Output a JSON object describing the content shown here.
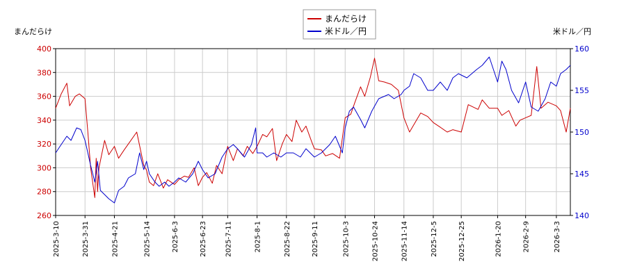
{
  "chart_data": {
    "type": "line",
    "left_axis_label": "まんだらけ",
    "right_axis_label": "米ドル／円",
    "legend": [
      "まんだらけ",
      "米ドル／円"
    ],
    "legend_position": "top-center",
    "grid": true,
    "colors": {
      "mandarake": "#cc0000",
      "usdjpy": "#0000cc",
      "grid": "#cccccc"
    },
    "left_ylim": [
      260,
      400
    ],
    "right_ylim": [
      140,
      160
    ],
    "left_yticks": [
      260,
      280,
      300,
      320,
      340,
      360,
      380,
      400
    ],
    "right_yticks": [
      140,
      145,
      150,
      155,
      160
    ],
    "xlim": [
      "2025-03-10",
      "2026-03-13"
    ],
    "xticks": [
      "2025-3-10",
      "2025-3-31",
      "2025-4-21",
      "2025-5-14",
      "2025-6-3",
      "2025-6-23",
      "2025-7-11",
      "2025-8-1",
      "2025-8-22",
      "2025-9-11",
      "2025-10-3",
      "2025-10-24",
      "2025-11-14",
      "2025-12-5",
      "2025-12-25",
      "2026-1-20",
      "2026-2-9",
      "2026-3-3"
    ],
    "series": [
      {
        "name": "まんだらけ",
        "axis": "left",
        "x": [
          "2025-03-10",
          "2025-03-14",
          "2025-03-18",
          "2025-03-20",
          "2025-03-24",
          "2025-03-27",
          "2025-03-31",
          "2025-04-02",
          "2025-04-04",
          "2025-04-07",
          "2025-04-08",
          "2025-04-09",
          "2025-04-10",
          "2025-04-14",
          "2025-04-17",
          "2025-04-21",
          "2025-04-24",
          "2025-04-28",
          "2025-05-01",
          "2025-05-07",
          "2025-05-12",
          "2025-05-14",
          "2025-05-16",
          "2025-05-19",
          "2025-05-22",
          "2025-05-26",
          "2025-05-29",
          "2025-06-03",
          "2025-06-06",
          "2025-06-10",
          "2025-06-13",
          "2025-06-17",
          "2025-06-20",
          "2025-06-23",
          "2025-06-26",
          "2025-06-30",
          "2025-07-03",
          "2025-07-07",
          "2025-07-11",
          "2025-07-15",
          "2025-07-18",
          "2025-07-22",
          "2025-07-25",
          "2025-07-29",
          "2025-08-01",
          "2025-08-05",
          "2025-08-08",
          "2025-08-12",
          "2025-08-15",
          "2025-08-19",
          "2025-08-22",
          "2025-08-26",
          "2025-08-29",
          "2025-09-02",
          "2025-09-05",
          "2025-09-09",
          "2025-09-11",
          "2025-09-16",
          "2025-09-19",
          "2025-09-24",
          "2025-09-29",
          "2025-10-03",
          "2025-10-07",
          "2025-10-10",
          "2025-10-14",
          "2025-10-17",
          "2025-10-21",
          "2025-10-24",
          "2025-10-27",
          "2025-10-31",
          "2025-11-05",
          "2025-11-10",
          "2025-11-14",
          "2025-11-18",
          "2025-11-21",
          "2025-11-26",
          "2025-12-01",
          "2025-12-05",
          "2025-12-10",
          "2025-12-15",
          "2025-12-19",
          "2025-12-25",
          "2025-12-30",
          "2026-01-06",
          "2026-01-09",
          "2026-01-14",
          "2026-01-20",
          "2026-01-23",
          "2026-01-28",
          "2026-02-02",
          "2026-02-05",
          "2026-02-09",
          "2026-02-13",
          "2026-02-17",
          "2026-02-20",
          "2026-02-25",
          "2026-03-03",
          "2026-03-06",
          "2026-03-10",
          "2026-03-13"
        ],
        "values": [
          350,
          362,
          371,
          352,
          360,
          362,
          358,
          330,
          300,
          275,
          308,
          280,
          300,
          323,
          311,
          318,
          308,
          315,
          320,
          330,
          302,
          298,
          288,
          285,
          295,
          283,
          290,
          286,
          290,
          293,
          292,
          300,
          285,
          292,
          296,
          287,
          302,
          295,
          318,
          306,
          316,
          310,
          318,
          312,
          318,
          328,
          326,
          333,
          306,
          320,
          328,
          322,
          340,
          330,
          335,
          322,
          316,
          315,
          310,
          312,
          308,
          342,
          345,
          355,
          368,
          360,
          376,
          392,
          373,
          372,
          370,
          365,
          342,
          330,
          336,
          346,
          343,
          338,
          334,
          330,
          332,
          330,
          353,
          349,
          357,
          350,
          350,
          344,
          348,
          335,
          340,
          342,
          344,
          385,
          350,
          355,
          352,
          348,
          330,
          350
        ]
      },
      {
        "name": "米ドル／円",
        "axis": "right",
        "x": [
          "2025-03-10",
          "2025-03-14",
          "2025-03-18",
          "2025-03-21",
          "2025-03-25",
          "2025-03-28",
          "2025-03-31",
          "2025-04-02",
          "2025-04-04",
          "2025-04-07",
          "2025-04-09",
          "2025-04-11",
          "2025-04-14",
          "2025-04-17",
          "2025-04-21",
          "2025-04-24",
          "2025-04-28",
          "2025-05-01",
          "2025-05-06",
          "2025-05-09",
          "2025-05-12",
          "2025-05-14",
          "2025-05-16",
          "2025-05-20",
          "2025-05-23",
          "2025-05-27",
          "2025-05-30",
          "2025-06-03",
          "2025-06-06",
          "2025-06-11",
          "2025-06-16",
          "2025-06-20",
          "2025-06-23",
          "2025-06-27",
          "2025-07-02",
          "2025-07-07",
          "2025-07-11",
          "2025-07-15",
          "2025-07-18",
          "2025-07-23",
          "2025-07-28",
          "2025-07-31",
          "2025-08-01",
          "2025-08-05",
          "2025-08-08",
          "2025-08-13",
          "2025-08-18",
          "2025-08-22",
          "2025-08-27",
          "2025-09-01",
          "2025-09-05",
          "2025-09-11",
          "2025-09-16",
          "2025-09-22",
          "2025-09-26",
          "2025-10-01",
          "2025-10-03",
          "2025-10-06",
          "2025-10-09",
          "2025-10-14",
          "2025-10-17",
          "2025-10-22",
          "2025-10-27",
          "2025-11-03",
          "2025-11-07",
          "2025-11-12",
          "2025-11-14",
          "2025-11-18",
          "2025-11-21",
          "2025-11-26",
          "2025-12-01",
          "2025-12-05",
          "2025-12-10",
          "2025-12-15",
          "2025-12-19",
          "2025-12-23",
          "2025-12-29",
          "2026-01-05",
          "2026-01-09",
          "2026-01-14",
          "2026-01-16",
          "2026-01-20",
          "2026-01-23",
          "2026-01-26",
          "2026-01-30",
          "2026-02-04",
          "2026-02-09",
          "2026-02-13",
          "2026-02-18",
          "2026-02-23",
          "2026-02-27",
          "2026-03-03",
          "2026-03-06",
          "2026-03-10",
          "2026-03-13"
        ],
        "values": [
          147.5,
          148.5,
          149.5,
          149.0,
          150.5,
          150.3,
          149.0,
          147.5,
          146.0,
          144.0,
          146.5,
          143.0,
          142.5,
          142.0,
          141.5,
          143.0,
          143.5,
          144.5,
          145.0,
          147.5,
          145.5,
          146.5,
          145.0,
          144.0,
          143.5,
          144.0,
          143.5,
          144.0,
          144.5,
          144.0,
          145.0,
          146.5,
          145.5,
          144.5,
          145.0,
          147.0,
          148.0,
          148.5,
          148.0,
          147.0,
          148.5,
          150.5,
          147.5,
          147.5,
          147.0,
          147.5,
          147.0,
          147.5,
          147.5,
          147.0,
          148.0,
          147.0,
          147.5,
          148.5,
          149.5,
          147.5,
          150.5,
          152.5,
          153.0,
          151.5,
          150.5,
          152.5,
          154.0,
          154.5,
          154.0,
          154.5,
          155.0,
          155.5,
          157.0,
          156.5,
          155.0,
          155.0,
          156.0,
          155.0,
          156.5,
          157.0,
          156.5,
          157.5,
          158.0,
          159.0,
          158.0,
          156.0,
          158.5,
          157.5,
          155.0,
          153.5,
          156.0,
          153.0,
          152.5,
          154.0,
          156.0,
          155.5,
          157.0,
          157.5,
          158.0
        ]
      }
    ]
  }
}
